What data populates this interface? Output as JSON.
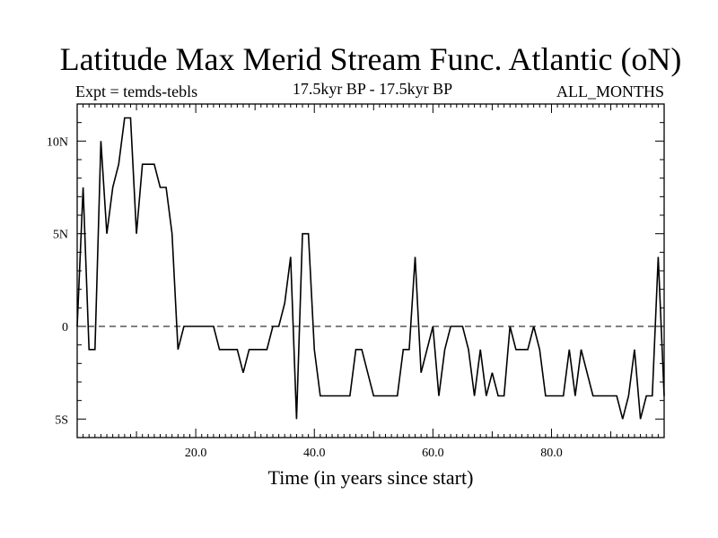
{
  "title": "Latitude Max Merid Stream Func. Atlantic (oN)",
  "experiment": "Expt = temds-tebls",
  "period": "17.5kyr BP - 17.5kyr BP",
  "months": "ALL_MONTHS",
  "chart_data": {
    "type": "line",
    "title": "Latitude Max Merid Stream Func. Atlantic (oN)",
    "xlabel": "Time (in years since start)",
    "ylabel": "",
    "xlim": [
      0,
      99
    ],
    "ylim": [
      -6,
      12
    ],
    "x_ticks": [
      {
        "value": 20,
        "label": "20.0"
      },
      {
        "value": 40,
        "label": "40.0"
      },
      {
        "value": 60,
        "label": "60.0"
      },
      {
        "value": 80,
        "label": "80.0"
      }
    ],
    "y_ticks": [
      {
        "value": 10,
        "label": "10N"
      },
      {
        "value": 5,
        "label": "5N"
      },
      {
        "value": 0,
        "label": "0"
      },
      {
        "value": -5,
        "label": "5S"
      }
    ],
    "reference_line": 0,
    "series": [
      {
        "name": "latitude",
        "x": [
          0,
          1,
          2,
          3,
          4,
          5,
          6,
          7,
          8,
          9,
          10,
          11,
          12,
          13,
          14,
          15,
          16,
          17,
          18,
          19,
          20,
          21,
          22,
          23,
          24,
          25,
          26,
          27,
          28,
          29,
          30,
          31,
          32,
          33,
          34,
          35,
          36,
          37,
          38,
          39,
          40,
          41,
          42,
          43,
          44,
          45,
          46,
          47,
          48,
          49,
          50,
          51,
          52,
          53,
          54,
          55,
          56,
          57,
          58,
          59,
          60,
          61,
          62,
          63,
          64,
          65,
          66,
          67,
          68,
          69,
          70,
          71,
          72,
          73,
          74,
          75,
          76,
          77,
          78,
          79,
          80,
          81,
          82,
          83,
          84,
          85,
          86,
          87,
          88,
          89,
          90,
          91,
          92,
          93,
          94,
          95,
          96,
          97,
          98,
          99
        ],
        "values": [
          0,
          7.5,
          -1.25,
          -1.25,
          10,
          5,
          7.5,
          8.75,
          11.25,
          11.25,
          5,
          8.75,
          8.75,
          8.75,
          7.5,
          7.5,
          5,
          -1.25,
          0,
          0,
          0,
          0,
          0,
          0,
          -1.25,
          -1.25,
          -1.25,
          -1.25,
          -2.5,
          -1.25,
          -1.25,
          -1.25,
          -1.25,
          0,
          0,
          1.25,
          3.75,
          -5,
          5,
          5,
          -1.25,
          -3.75,
          -3.75,
          -3.75,
          -3.75,
          -3.75,
          -3.75,
          -1.25,
          -1.25,
          -2.5,
          -3.75,
          -3.75,
          -3.75,
          -3.75,
          -3.75,
          -1.25,
          -1.25,
          3.75,
          -2.5,
          -1.25,
          0,
          -3.75,
          -1.25,
          0,
          0,
          0,
          -1.25,
          -3.75,
          -1.25,
          -3.75,
          -2.5,
          -3.75,
          -3.75,
          0,
          -1.25,
          -1.25,
          -1.25,
          0,
          -1.25,
          -3.75,
          -3.75,
          -3.75,
          -3.75,
          -1.25,
          -3.75,
          -1.25,
          -2.5,
          -3.75,
          -3.75,
          -3.75,
          -3.75,
          -3.75,
          -5,
          -3.75,
          -1.25,
          -5,
          -3.75,
          -3.75,
          3.75,
          -3.75
        ]
      }
    ]
  }
}
